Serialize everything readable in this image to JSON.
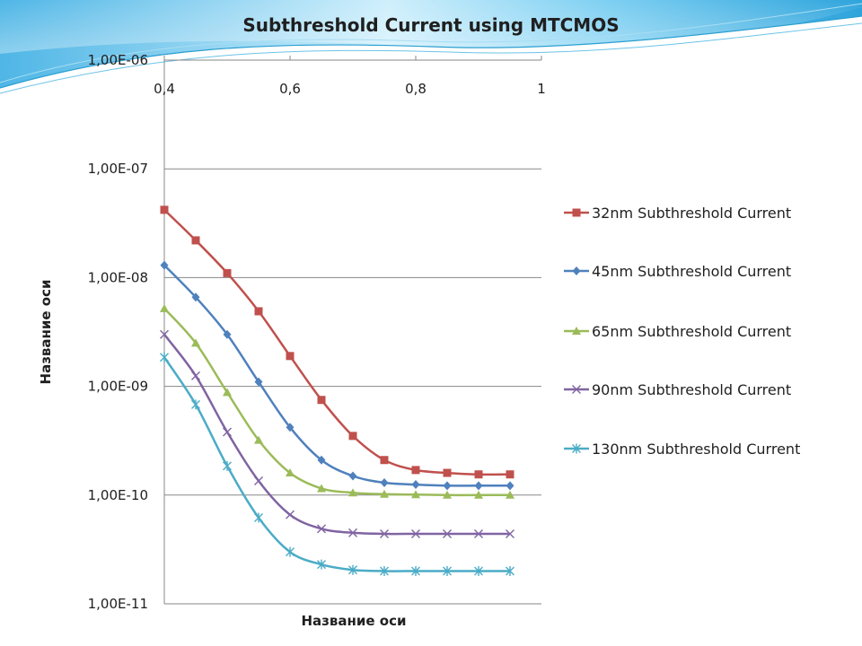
{
  "chart_data": {
    "type": "line",
    "title": "Subthreshold Current using MTCMOS",
    "xlabel": "Название оси",
    "ylabel": "Название оси",
    "x_tick_labels": [
      "0,4",
      "0,6",
      "0,8",
      "1"
    ],
    "x_ticks": [
      0.4,
      0.6,
      0.8,
      1.0
    ],
    "xlim": [
      0.4,
      1.0
    ],
    "y_tick_labels": [
      "1,00E-06",
      "1,00E-07",
      "1,00E-08",
      "1,00E-09",
      "1,00E-10",
      "1,00E-11"
    ],
    "ylim": [
      1e-11,
      1e-06
    ],
    "y_scale": "log",
    "grid": "horizontal",
    "legend_position": "right",
    "x": [
      0.4,
      0.45,
      0.5,
      0.55,
      0.6,
      0.65,
      0.7,
      0.75,
      0.8,
      0.85,
      0.9,
      0.95
    ],
    "series": [
      {
        "name": "32nm Subthreshold Current",
        "color": "#c0504d",
        "marker": "square",
        "values": [
          4.2e-08,
          2.2e-08,
          1.1e-08,
          4.9e-09,
          1.9e-09,
          7.5e-10,
          3.5e-10,
          2.1e-10,
          1.7e-10,
          1.6e-10,
          1.55e-10,
          1.55e-10
        ]
      },
      {
        "name": "45nm Subthreshold Current",
        "color": "#4f81bd",
        "marker": "diamond",
        "values": [
          1.3e-08,
          6.6e-09,
          3e-09,
          1.1e-09,
          4.2e-10,
          2.1e-10,
          1.5e-10,
          1.3e-10,
          1.25e-10,
          1.22e-10,
          1.22e-10,
          1.22e-10
        ]
      },
      {
        "name": "65nm Subthreshold Current",
        "color": "#9bbb59",
        "marker": "triangle",
        "values": [
          5.2e-09,
          2.5e-09,
          8.8e-10,
          3.2e-10,
          1.6e-10,
          1.15e-10,
          1.05e-10,
          1.02e-10,
          1.01e-10,
          1e-10,
          1e-10,
          1e-10
        ]
      },
      {
        "name": "90nm Subthreshold Current",
        "color": "#8064a2",
        "marker": "x",
        "values": [
          3e-09,
          1.25e-09,
          3.8e-10,
          1.35e-10,
          6.6e-11,
          4.9e-11,
          4.5e-11,
          4.4e-11,
          4.4e-11,
          4.4e-11,
          4.4e-11,
          4.4e-11
        ]
      },
      {
        "name": "130nm Subthreshold Current",
        "color": "#4bacc6",
        "marker": "star",
        "values": [
          1.85e-09,
          6.8e-10,
          1.85e-10,
          6.2e-11,
          3e-11,
          2.3e-11,
          2.05e-11,
          2e-11,
          2e-11,
          2e-11,
          2e-11,
          2e-11
        ]
      }
    ]
  }
}
